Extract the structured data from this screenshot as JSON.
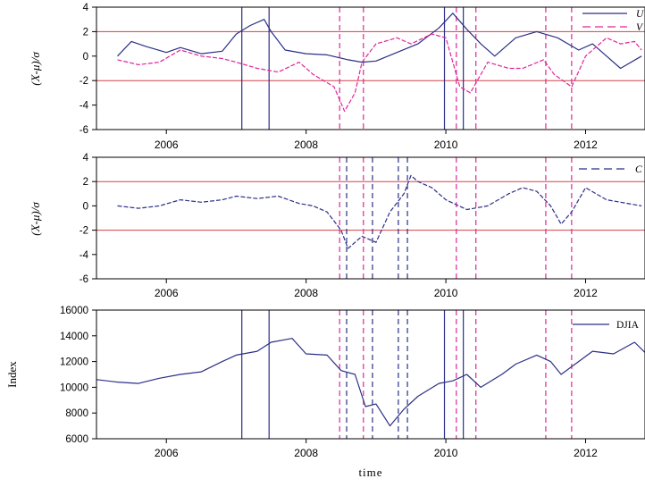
{
  "colors": {
    "navy": "#2b2f86",
    "magenta": "#e0259a",
    "threshold": "#d6404a",
    "axis": "#000000"
  },
  "chart_data": [
    {
      "type": "line",
      "ylabel": "(X-μ)/σ",
      "ylim": [
        -6,
        4
      ],
      "yticks": [
        -6,
        -4,
        -2,
        0,
        2,
        4
      ],
      "xlim": [
        2005.0,
        2012.85
      ],
      "xticks": [
        2006,
        2008,
        2010,
        2012
      ],
      "xticklabels": [
        "2006",
        "2008",
        "2010",
        "2012"
      ],
      "threshold_lines": [
        2,
        -2
      ],
      "legend": {
        "placement": "top-right",
        "entries": [
          "U",
          "V"
        ]
      },
      "series": [
        {
          "name": "U",
          "style": "solid",
          "color": "navy",
          "points": [
            [
              2005.3,
              0.0
            ],
            [
              2005.5,
              1.2
            ],
            [
              2005.7,
              0.8
            ],
            [
              2006.0,
              0.3
            ],
            [
              2006.2,
              0.7
            ],
            [
              2006.5,
              0.2
            ],
            [
              2006.8,
              0.4
            ],
            [
              2007.0,
              1.8
            ],
            [
              2007.2,
              2.5
            ],
            [
              2007.4,
              3.0
            ],
            [
              2007.5,
              2.0
            ],
            [
              2007.7,
              0.5
            ],
            [
              2008.0,
              0.2
            ],
            [
              2008.3,
              0.1
            ],
            [
              2008.6,
              -0.3
            ],
            [
              2008.8,
              -0.5
            ],
            [
              2009.0,
              -0.4
            ],
            [
              2009.3,
              0.3
            ],
            [
              2009.6,
              1.0
            ],
            [
              2009.9,
              2.3
            ],
            [
              2010.1,
              3.5
            ],
            [
              2010.3,
              2.2
            ],
            [
              2010.5,
              1.0
            ],
            [
              2010.7,
              0.0
            ],
            [
              2011.0,
              1.5
            ],
            [
              2011.3,
              2.0
            ],
            [
              2011.6,
              1.5
            ],
            [
              2011.9,
              0.5
            ],
            [
              2012.1,
              1.0
            ],
            [
              2012.3,
              0.0
            ],
            [
              2012.5,
              -1.0
            ],
            [
              2012.8,
              0.0
            ]
          ]
        },
        {
          "name": "V",
          "style": "dashed",
          "color": "magenta",
          "points": [
            [
              2005.3,
              -0.3
            ],
            [
              2005.6,
              -0.7
            ],
            [
              2005.9,
              -0.5
            ],
            [
              2006.2,
              0.5
            ],
            [
              2006.5,
              0.0
            ],
            [
              2006.8,
              -0.2
            ],
            [
              2007.0,
              -0.5
            ],
            [
              2007.3,
              -1.0
            ],
            [
              2007.6,
              -1.3
            ],
            [
              2007.9,
              -0.5
            ],
            [
              2008.1,
              -1.5
            ],
            [
              2008.4,
              -2.5
            ],
            [
              2008.55,
              -4.5
            ],
            [
              2008.7,
              -3.0
            ],
            [
              2008.8,
              -0.5
            ],
            [
              2009.0,
              1.0
            ],
            [
              2009.3,
              1.5
            ],
            [
              2009.5,
              1.0
            ],
            [
              2009.8,
              1.8
            ],
            [
              2010.0,
              1.5
            ],
            [
              2010.2,
              -2.5
            ],
            [
              2010.35,
              -3.0
            ],
            [
              2010.6,
              -0.5
            ],
            [
              2010.9,
              -1.0
            ],
            [
              2011.1,
              -1.0
            ],
            [
              2011.4,
              -0.3
            ],
            [
              2011.55,
              -1.5
            ],
            [
              2011.8,
              -2.5
            ],
            [
              2012.0,
              0.0
            ],
            [
              2012.3,
              1.5
            ],
            [
              2012.5,
              1.0
            ],
            [
              2012.7,
              1.2
            ],
            [
              2012.8,
              0.5
            ]
          ]
        }
      ],
      "event_lines": [
        {
          "x": 2007.08,
          "style": "solid",
          "color": "navy"
        },
        {
          "x": 2007.47,
          "style": "solid",
          "color": "navy"
        },
        {
          "x": 2008.48,
          "style": "dashed",
          "color": "magenta"
        },
        {
          "x": 2008.82,
          "style": "dashed",
          "color": "magenta"
        },
        {
          "x": 2009.98,
          "style": "solid",
          "color": "navy"
        },
        {
          "x": 2010.15,
          "style": "dashed",
          "color": "magenta"
        },
        {
          "x": 2010.25,
          "style": "solid",
          "color": "navy"
        },
        {
          "x": 2010.43,
          "style": "dashed",
          "color": "magenta"
        },
        {
          "x": 2011.43,
          "style": "dashed",
          "color": "magenta"
        },
        {
          "x": 2011.8,
          "style": "dashed",
          "color": "magenta"
        }
      ]
    },
    {
      "type": "line",
      "ylabel": "(X-μ)/σ",
      "ylim": [
        -6,
        4
      ],
      "yticks": [
        -6,
        -4,
        -2,
        0,
        2,
        4
      ],
      "xlim": [
        2005.0,
        2012.85
      ],
      "xticks": [
        2006,
        2008,
        2010,
        2012
      ],
      "xticklabels": [
        "2006",
        "2008",
        "2010",
        "2012"
      ],
      "threshold_lines": [
        2,
        -2
      ],
      "legend": {
        "placement": "top-right",
        "entries": [
          "C"
        ]
      },
      "series": [
        {
          "name": "C",
          "style": "dashed",
          "color": "navy",
          "points": [
            [
              2005.3,
              0.0
            ],
            [
              2005.6,
              -0.2
            ],
            [
              2005.9,
              0.0
            ],
            [
              2006.2,
              0.5
            ],
            [
              2006.5,
              0.3
            ],
            [
              2006.8,
              0.5
            ],
            [
              2007.0,
              0.8
            ],
            [
              2007.3,
              0.6
            ],
            [
              2007.6,
              0.8
            ],
            [
              2007.9,
              0.2
            ],
            [
              2008.1,
              0.0
            ],
            [
              2008.3,
              -0.5
            ],
            [
              2008.5,
              -2.0
            ],
            [
              2008.6,
              -3.5
            ],
            [
              2008.8,
              -2.5
            ],
            [
              2009.0,
              -3.0
            ],
            [
              2009.2,
              -0.5
            ],
            [
              2009.4,
              1.0
            ],
            [
              2009.5,
              2.5
            ],
            [
              2009.6,
              2.0
            ],
            [
              2009.8,
              1.5
            ],
            [
              2010.0,
              0.5
            ],
            [
              2010.3,
              -0.3
            ],
            [
              2010.6,
              0.0
            ],
            [
              2010.9,
              1.0
            ],
            [
              2011.1,
              1.5
            ],
            [
              2011.3,
              1.2
            ],
            [
              2011.5,
              0.0
            ],
            [
              2011.65,
              -1.5
            ],
            [
              2011.8,
              -0.5
            ],
            [
              2012.0,
              1.5
            ],
            [
              2012.3,
              0.5
            ],
            [
              2012.5,
              0.3
            ],
            [
              2012.8,
              0.0
            ]
          ]
        }
      ],
      "event_lines": [
        {
          "x": 2008.48,
          "style": "dashed",
          "color": "magenta"
        },
        {
          "x": 2008.58,
          "style": "dashed",
          "color": "navy"
        },
        {
          "x": 2008.82,
          "style": "dashed",
          "color": "magenta"
        },
        {
          "x": 2008.95,
          "style": "dashed",
          "color": "navy"
        },
        {
          "x": 2009.32,
          "style": "dashed",
          "color": "navy"
        },
        {
          "x": 2009.45,
          "style": "dashed",
          "color": "navy"
        },
        {
          "x": 2010.15,
          "style": "dashed",
          "color": "magenta"
        },
        {
          "x": 2010.43,
          "style": "dashed",
          "color": "magenta"
        },
        {
          "x": 2011.43,
          "style": "dashed",
          "color": "magenta"
        },
        {
          "x": 2011.8,
          "style": "dashed",
          "color": "magenta"
        }
      ]
    },
    {
      "type": "line",
      "ylabel": "Index",
      "xlabel": "time",
      "ylim": [
        6000,
        16000
      ],
      "yticks": [
        6000,
        8000,
        10000,
        12000,
        14000,
        16000
      ],
      "xlim": [
        2005.0,
        2012.85
      ],
      "xticks": [
        2006,
        2008,
        2010,
        2012
      ],
      "xticklabels": [
        "2006",
        "2008",
        "2010",
        "2012"
      ],
      "threshold_lines": [],
      "legend": {
        "placement": "top-right",
        "entries": [
          "DJIA"
        ]
      },
      "series": [
        {
          "name": "DJIA",
          "style": "solid",
          "color": "navy",
          "points": [
            [
              2005.0,
              10600
            ],
            [
              2005.3,
              10400
            ],
            [
              2005.6,
              10300
            ],
            [
              2005.9,
              10700
            ],
            [
              2006.2,
              11000
            ],
            [
              2006.5,
              11200
            ],
            [
              2006.8,
              12000
            ],
            [
              2007.0,
              12500
            ],
            [
              2007.3,
              12800
            ],
            [
              2007.5,
              13500
            ],
            [
              2007.8,
              13800
            ],
            [
              2008.0,
              12600
            ],
            [
              2008.3,
              12500
            ],
            [
              2008.5,
              11300
            ],
            [
              2008.7,
              11000
            ],
            [
              2008.85,
              8500
            ],
            [
              2009.0,
              8700
            ],
            [
              2009.2,
              7000
            ],
            [
              2009.4,
              8300
            ],
            [
              2009.6,
              9300
            ],
            [
              2009.9,
              10300
            ],
            [
              2010.1,
              10500
            ],
            [
              2010.3,
              11000
            ],
            [
              2010.5,
              10000
            ],
            [
              2010.8,
              11000
            ],
            [
              2011.0,
              11800
            ],
            [
              2011.3,
              12500
            ],
            [
              2011.5,
              12000
            ],
            [
              2011.65,
              11000
            ],
            [
              2011.9,
              12000
            ],
            [
              2012.1,
              12800
            ],
            [
              2012.4,
              12600
            ],
            [
              2012.7,
              13500
            ],
            [
              2012.85,
              12700
            ]
          ]
        }
      ],
      "event_lines": [
        {
          "x": 2007.08,
          "style": "solid",
          "color": "navy"
        },
        {
          "x": 2007.47,
          "style": "solid",
          "color": "navy"
        },
        {
          "x": 2008.48,
          "style": "dashed",
          "color": "magenta"
        },
        {
          "x": 2008.58,
          "style": "dashed",
          "color": "navy"
        },
        {
          "x": 2008.82,
          "style": "dashed",
          "color": "magenta"
        },
        {
          "x": 2008.95,
          "style": "dashed",
          "color": "navy"
        },
        {
          "x": 2009.32,
          "style": "dashed",
          "color": "navy"
        },
        {
          "x": 2009.45,
          "style": "dashed",
          "color": "navy"
        },
        {
          "x": 2009.98,
          "style": "solid",
          "color": "navy"
        },
        {
          "x": 2010.15,
          "style": "dashed",
          "color": "magenta"
        },
        {
          "x": 2010.25,
          "style": "solid",
          "color": "navy"
        },
        {
          "x": 2010.43,
          "style": "dashed",
          "color": "magenta"
        },
        {
          "x": 2011.43,
          "style": "dashed",
          "color": "magenta"
        },
        {
          "x": 2011.8,
          "style": "dashed",
          "color": "magenta"
        }
      ]
    }
  ]
}
